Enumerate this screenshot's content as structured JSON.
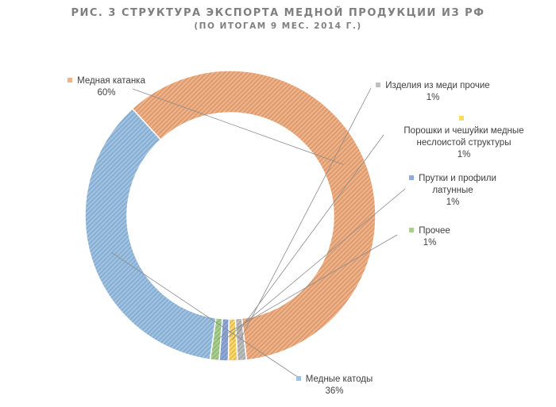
{
  "title": "РИС. 3  СТРУКТУРА ЭКСПОРТА МЕДНОЙ ПРОДУКЦИИ ИЗ РФ",
  "subtitle": "(ПО ИТОГАМ 9 МЕС. 2014 Г.)",
  "chart_data": {
    "type": "pie",
    "style": "doughnut",
    "title": "РИС. 3  СТРУКТУРА ЭКСПОРТА МЕДНОЙ ПРОДУКЦИИ ИЗ РФ",
    "subtitle": "(ПО ИТОГАМ 9 МЕС. 2014 Г.)",
    "slices": [
      {
        "label": "Медные катоды",
        "value": 36,
        "value_label": "36%",
        "color": "#9dc3e6"
      },
      {
        "label": "Медная катанка",
        "value": 60,
        "value_label": "60%",
        "color": "#f4b183"
      },
      {
        "label": "Изделия из меди прочие",
        "value": 1,
        "value_label": "1%",
        "color": "#bfbfbf"
      },
      {
        "label": "Порошки и чешуйки медные неслоистой структуры",
        "value": 1,
        "value_label": "1%",
        "color": "#ffd966"
      },
      {
        "label": "Прутки и профили латунные",
        "value": 1,
        "value_label": "1%",
        "color": "#8faadc"
      },
      {
        "label": "Прочее",
        "value": 1,
        "value_label": "1%",
        "color": "#a9d18e"
      }
    ]
  }
}
